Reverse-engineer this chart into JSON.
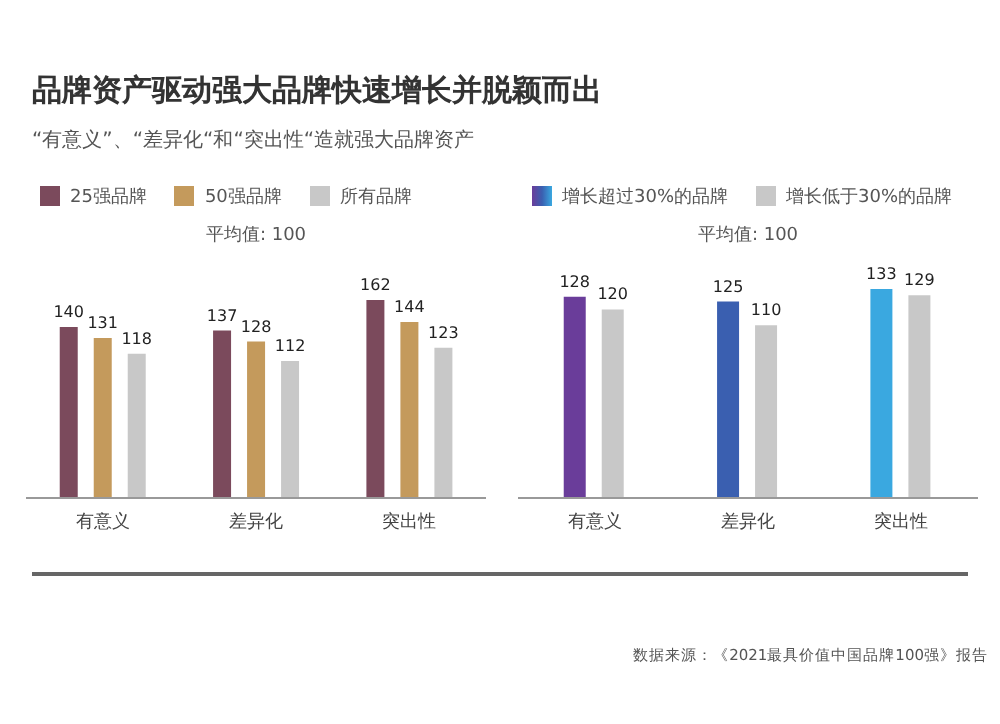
{
  "chart_data": [
    {
      "type": "bar",
      "title": "品牌资产驱动强大品牌快速增长并脱颖而出",
      "subtitle": "“有意义”、“差异化“和“突出性“造就强大品牌资产",
      "categories": [
        "有意义",
        "差异化",
        "突出性"
      ],
      "series": [
        {
          "name": "25强品牌",
          "color": "#7b4a5c",
          "values": [
            140,
            137,
            162
          ]
        },
        {
          "name": "50强品牌",
          "color": "#c49a5c",
          "values": [
            131,
            128,
            144
          ]
        },
        {
          "name": "所有品牌",
          "color": "#c8c8c8",
          "values": [
            118,
            112,
            123
          ]
        }
      ],
      "tick_labels": "x",
      "data_labels": true,
      "legend": "top",
      "annotations": [
        "平均值: 100"
      ]
    },
    {
      "type": "bar",
      "categories": [
        "有意义",
        "差异化",
        "突出性"
      ],
      "series": [
        {
          "name": "增长超过30%的品牌",
          "color": "#3a5fb0",
          "colors": [
            "#6a3d9a",
            "#3a5fb0",
            "#3aa8e0"
          ],
          "values": [
            128,
            125,
            133
          ]
        },
        {
          "name": "增长低于30%的品牌",
          "color": "#c8c8c8",
          "values": [
            120,
            110,
            129
          ]
        }
      ],
      "tick_labels": "x",
      "data_labels": true,
      "legend": "top",
      "annotations": [
        "平均值: 100",
        "数据来源：《2021最具价值中国品牌100强》报告"
      ]
    }
  ]
}
